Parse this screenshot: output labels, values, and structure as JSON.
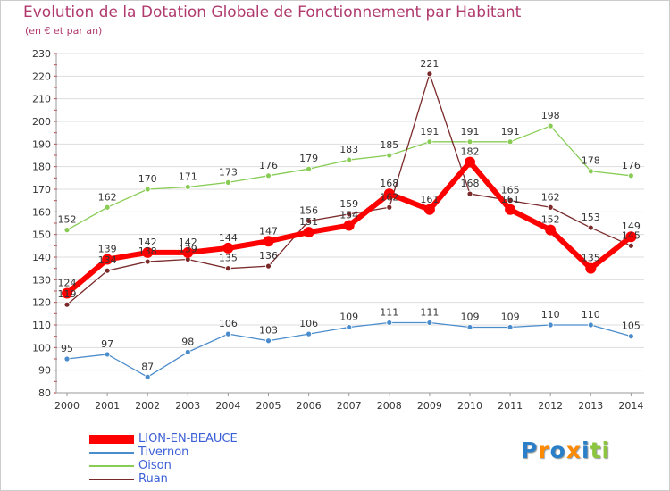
{
  "header": {
    "title": "Evolution de la Dotation Globale de Fonctionnement par Habitant",
    "subtitle": "(en € et par an)"
  },
  "chart_data": {
    "type": "line",
    "title": "Evolution de la Dotation Globale de Fonctionnement par Habitant",
    "subtitle": "(en € et par an)",
    "xlabel": "",
    "ylabel": "",
    "x": [
      "2000",
      "2001",
      "2002",
      "2003",
      "2004",
      "2005",
      "2006",
      "2007",
      "2008",
      "2009",
      "2010",
      "2011",
      "2012",
      "2013",
      "2014"
    ],
    "ylim": [
      80,
      230
    ],
    "yticks": [
      80,
      90,
      100,
      110,
      120,
      130,
      140,
      150,
      160,
      170,
      180,
      190,
      200,
      210,
      220,
      230
    ],
    "grid": "horizontal",
    "legend_position": "bottom-left",
    "series": [
      {
        "name": "LION-EN-BEAUCE",
        "color": "#ff0000",
        "values": [
          124,
          139,
          142,
          142,
          144,
          147,
          151,
          154,
          168,
          161,
          182,
          161,
          152,
          135,
          149
        ]
      },
      {
        "name": "Tivernon",
        "color": "#4a8ccc",
        "values": [
          95,
          97,
          87,
          98,
          106,
          103,
          106,
          109,
          111,
          111,
          109,
          109,
          110,
          110,
          105
        ]
      },
      {
        "name": "Oison",
        "color": "#88cc55",
        "values": [
          152,
          162,
          170,
          171,
          173,
          176,
          179,
          183,
          185,
          191,
          191,
          191,
          198,
          178,
          176
        ]
      },
      {
        "name": "Ruan",
        "color": "#7a2a2a",
        "values": [
          119,
          134,
          138,
          139,
          135,
          136,
          156,
          159,
          162,
          221,
          168,
          165,
          162,
          153,
          145
        ]
      }
    ]
  },
  "legend": [
    {
      "label": "LION-EN-BEAUCE"
    },
    {
      "label": "Tivernon"
    },
    {
      "label": "Oison"
    },
    {
      "label": "Ruan"
    }
  ],
  "logo": {
    "text": "Proxiti",
    "colors": [
      "#2a7fc8",
      "#ff8a00",
      "#2a7fc8",
      "#ff8a00",
      "#2a7fc8",
      "#8cc63f",
      "#8cc63f"
    ]
  }
}
